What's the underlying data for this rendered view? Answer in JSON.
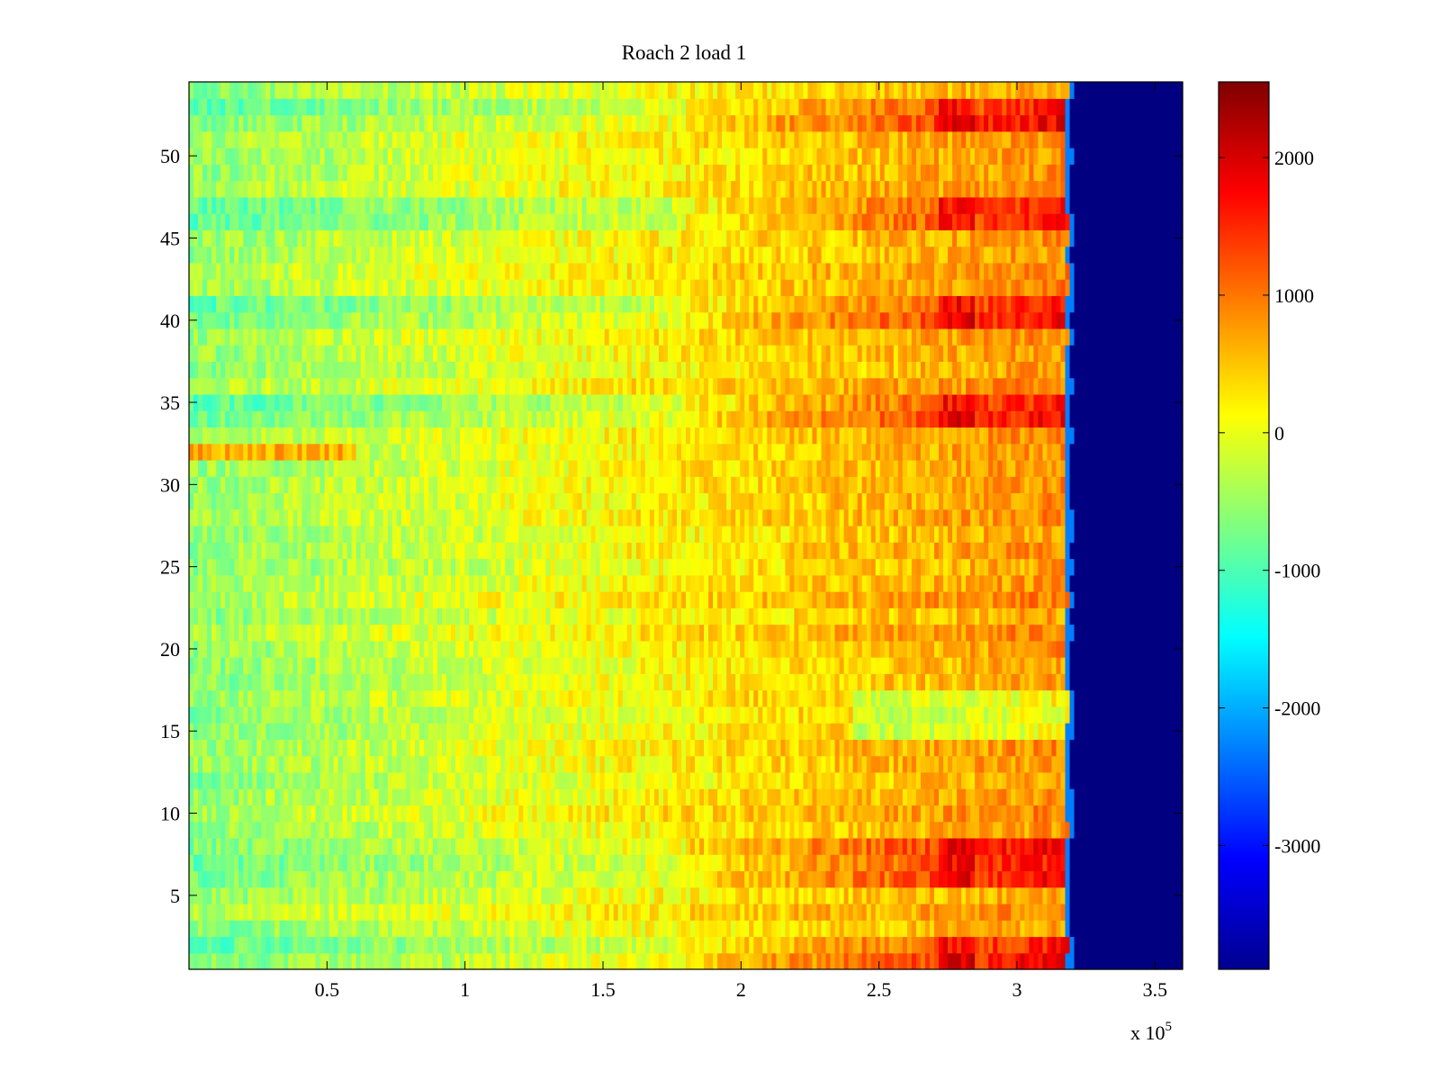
{
  "chart_data": {
    "type": "heatmap",
    "title": "Roach 2 load 1",
    "xlabel": "",
    "ylabel": "",
    "x_multiplier_label": "x 10",
    "x_multiplier_exponent": "5",
    "xlim": [
      0,
      3.6
    ],
    "ylim": [
      0.5,
      54.5
    ],
    "x_units_scale": 100000,
    "rows": 54,
    "x_ticks": [
      {
        "value": 0.5,
        "label": "0.5"
      },
      {
        "value": 1,
        "label": "1"
      },
      {
        "value": 1.5,
        "label": "1.5"
      },
      {
        "value": 2,
        "label": "2"
      },
      {
        "value": 2.5,
        "label": "2.5"
      },
      {
        "value": 3,
        "label": "3"
      },
      {
        "value": 3.5,
        "label": "3.5"
      }
    ],
    "y_ticks": [
      {
        "value": 5,
        "label": "5"
      },
      {
        "value": 10,
        "label": "10"
      },
      {
        "value": 15,
        "label": "15"
      },
      {
        "value": 20,
        "label": "20"
      },
      {
        "value": 25,
        "label": "25"
      },
      {
        "value": 30,
        "label": "30"
      },
      {
        "value": 35,
        "label": "35"
      },
      {
        "value": 40,
        "label": "40"
      },
      {
        "value": 45,
        "label": "45"
      },
      {
        "value": 50,
        "label": "50"
      }
    ],
    "colorbar": {
      "colormap": "jet",
      "range": [
        -3900,
        2550
      ],
      "ticks": [
        {
          "value": 2000,
          "label": "2000"
        },
        {
          "value": 1000,
          "label": "1000"
        },
        {
          "value": 0,
          "label": "0"
        },
        {
          "value": -1000,
          "label": "-1000"
        },
        {
          "value": -2000,
          "label": "-2000"
        },
        {
          "value": -3000,
          "label": "-3000"
        }
      ]
    },
    "signal_end_x": 3.18,
    "baseline_value": -3900,
    "hot_rows": [
      1,
      2,
      6,
      7,
      8,
      34,
      35,
      40,
      41,
      46,
      47,
      52,
      53
    ],
    "cool_rows": [
      15,
      16,
      17
    ],
    "warm_stripe": {
      "row": 32,
      "x_end": 0.6
    }
  }
}
